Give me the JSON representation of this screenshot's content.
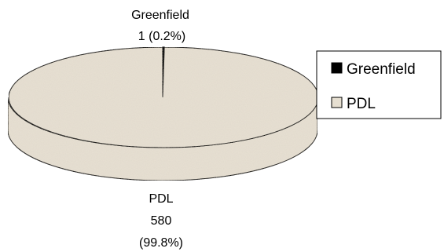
{
  "chart_data": {
    "type": "pie",
    "style": "3d",
    "title": "",
    "categories": [
      "Greenfield",
      "PDL"
    ],
    "values": [
      1,
      580
    ],
    "percent_labels": [
      "(0.2%)",
      "(99.8%)"
    ],
    "colors": {
      "Greenfield": "#000000",
      "PDL": "#e6dfd1"
    },
    "legend": {
      "placement": "right",
      "entries": [
        "Greenfield",
        "PDL"
      ]
    }
  }
}
